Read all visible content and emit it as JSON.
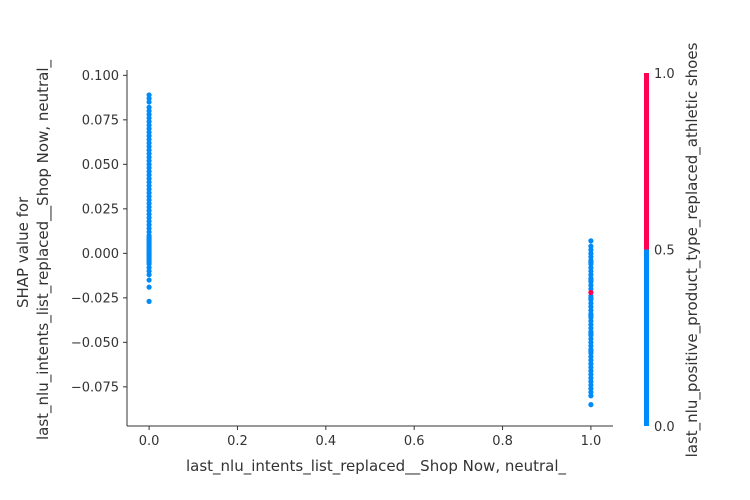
{
  "chart_data": {
    "type": "scatter",
    "title": "",
    "xlabel": "last_nlu_intents_list_replaced__Shop Now, neutral_",
    "ylabel_lines": [
      "SHAP value for",
      "last_nlu_intents_list_replaced__Shop Now, neutral_"
    ],
    "xlim": [
      -0.05,
      1.05
    ],
    "ylim": [
      -0.097,
      0.103
    ],
    "x_ticks": [
      0.0,
      0.2,
      0.4,
      0.6,
      0.8,
      1.0
    ],
    "x_tick_labels": [
      "0.0",
      "0.2",
      "0.4",
      "0.6",
      "0.8",
      "1.0"
    ],
    "y_ticks": [
      0.1,
      0.075,
      0.05,
      0.025,
      0.0,
      -0.025,
      -0.05,
      -0.075
    ],
    "y_tick_labels": [
      "0.100",
      "0.075",
      "0.050",
      "0.025",
      "0.000",
      "−0.025",
      "−0.050",
      "−0.075"
    ],
    "grid": false,
    "colorbar": {
      "label": "last_nlu_positive_product_type_replaced_athletic shoes",
      "range": [
        0.0,
        1.0
      ],
      "ticks": [
        1.0,
        0.5,
        0.0
      ],
      "tick_labels": [
        "1.0",
        "0.5",
        "0.0"
      ],
      "low_color": "#008bfb",
      "high_color": "#ff0052"
    },
    "series": [
      {
        "color_value": 0,
        "color": "#008bfb",
        "x": [
          0,
          0,
          0,
          0,
          0,
          0,
          0,
          0,
          0,
          0,
          0,
          0,
          0,
          0,
          0,
          0,
          0,
          0,
          0,
          0,
          0,
          0,
          0,
          0,
          0,
          0,
          0,
          0,
          0,
          0,
          0,
          0,
          0,
          0,
          0,
          0,
          0,
          0,
          0,
          0,
          0,
          0,
          0,
          0,
          0,
          0,
          0,
          0,
          0,
          0,
          0,
          0,
          0,
          0,
          0,
          0,
          0,
          0,
          0,
          0,
          0,
          0,
          1,
          1,
          1,
          1,
          1,
          1,
          1,
          1,
          1,
          1,
          1,
          1,
          1,
          1,
          1,
          1,
          1,
          1,
          1,
          1,
          1,
          1,
          1,
          1,
          1,
          1,
          1,
          1,
          1,
          1,
          1,
          1,
          1,
          1,
          1,
          1,
          1,
          1,
          1,
          1,
          1,
          1,
          1,
          1,
          1,
          1,
          1,
          1,
          1,
          1
        ],
        "y": [
          0.089,
          0.087,
          0.085,
          0.082,
          0.08,
          0.078,
          0.076,
          0.074,
          0.072,
          0.07,
          0.068,
          0.066,
          0.064,
          0.062,
          0.06,
          0.058,
          0.056,
          0.054,
          0.052,
          0.05,
          0.048,
          0.046,
          0.044,
          0.042,
          0.04,
          0.038,
          0.036,
          0.034,
          0.032,
          0.03,
          0.028,
          0.026,
          0.024,
          0.022,
          0.02,
          0.018,
          0.016,
          0.014,
          0.012,
          0.01,
          0.009,
          0.008,
          0.007,
          0.006,
          0.005,
          0.004,
          0.003,
          0.002,
          0.001,
          0.0,
          -0.001,
          -0.002,
          -0.003,
          -0.004,
          -0.005,
          -0.006,
          -0.008,
          -0.01,
          -0.012,
          -0.015,
          -0.019,
          -0.027,
          0.007,
          0.004,
          0.002,
          0.0,
          -0.002,
          -0.004,
          -0.006,
          -0.008,
          -0.01,
          -0.012,
          -0.014,
          -0.016,
          -0.018,
          -0.02,
          -0.024,
          -0.026,
          -0.028,
          -0.03,
          -0.032,
          -0.034,
          -0.036,
          -0.038,
          -0.04,
          -0.042,
          -0.044,
          -0.046,
          -0.048,
          -0.05,
          -0.052,
          -0.054,
          -0.056,
          -0.058,
          -0.06,
          -0.062,
          -0.064,
          -0.066,
          -0.068,
          -0.07,
          -0.072,
          -0.074,
          -0.076,
          -0.078,
          -0.08,
          -0.085,
          -0.005,
          -0.015,
          -0.025,
          -0.035,
          -0.045,
          -0.055
        ]
      },
      {
        "color_value": 1,
        "color": "#ff0052",
        "x": [
          1
        ],
        "y": [
          -0.022
        ]
      }
    ]
  }
}
